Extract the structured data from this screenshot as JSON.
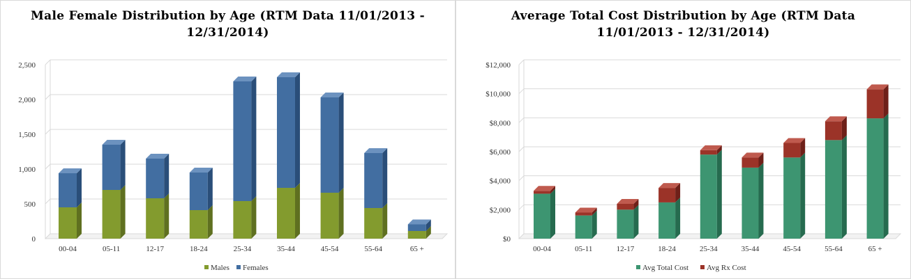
{
  "charts": [
    {
      "title": "Male Female Distribution by Age (RTM Data 11/01/2013 - 12/31/2014)",
      "chart_data": {
        "type": "bar",
        "stacked": true,
        "categories": [
          "00-04",
          "05-11",
          "12-17",
          "18-24",
          "25-34",
          "35-44",
          "45-54",
          "55-64",
          "65 +"
        ],
        "series": [
          {
            "name": "Males",
            "values": [
              450,
              700,
              580,
              410,
              540,
              730,
              660,
              440,
              110
            ],
            "color": "#839b2e",
            "side_color": "#5f7020",
            "top_color": "#a7bd4f"
          },
          {
            "name": "Females",
            "values": [
              490,
              650,
              570,
              540,
              1720,
              1590,
              1370,
              790,
              95
            ],
            "color": "#426ea1",
            "side_color": "#2a4e79",
            "top_color": "#6c92bf"
          }
        ],
        "ylim": [
          0,
          2500
        ],
        "yticks": [
          0,
          500,
          1000,
          1500,
          2000,
          2500
        ],
        "ytick_labels": [
          "0",
          "500",
          "1,000",
          "1,500",
          "2,000",
          "2,500"
        ],
        "grid": true,
        "legend": "bottom"
      }
    },
    {
      "title": "Average Total Cost Distribution by Age (RTM Data 11/01/2013 - 12/31/2014)",
      "chart_data": {
        "type": "bar",
        "stacked": true,
        "categories": [
          "00-04",
          "05-11",
          "12-17",
          "18-24",
          "25-34",
          "35-44",
          "45-54",
          "55-64",
          "65 +"
        ],
        "series": [
          {
            "name": "Avg Total Cost",
            "values": [
              3100,
              1600,
              2000,
              2500,
              5800,
              4900,
              5600,
              6800,
              8300
            ],
            "color": "#3d9571",
            "side_color": "#266b4f",
            "top_color": "#63b493"
          },
          {
            "name": "Avg Rx Cost",
            "values": [
              200,
              200,
              400,
              1000,
              300,
              700,
              1000,
              1300,
              2000
            ],
            "color": "#9b3328",
            "side_color": "#6e2019",
            "top_color": "#bf5a4e"
          }
        ],
        "ylim": [
          0,
          12000
        ],
        "yticks": [
          0,
          2000,
          4000,
          6000,
          8000,
          10000,
          12000
        ],
        "ytick_labels": [
          "$0",
          "$2,000",
          "$4,000",
          "$6,000",
          "$8,000",
          "$10,000",
          "$12,000"
        ],
        "grid": true,
        "legend": "bottom"
      }
    }
  ]
}
